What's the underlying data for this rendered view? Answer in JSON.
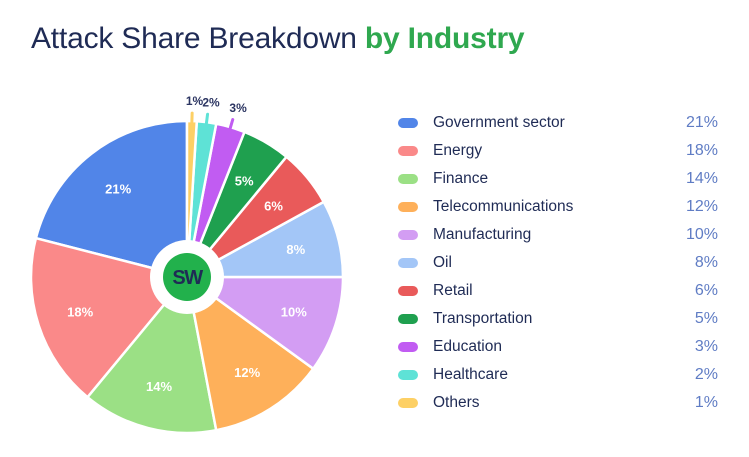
{
  "title": {
    "main": "Attack Share Breakdown",
    "accent": "by Industry"
  },
  "logo_text": "SW",
  "colors": {
    "title": "#1f2b55",
    "accent": "#2fa84f",
    "value_text": "#5f7cc4"
  },
  "chart_data": {
    "type": "pie",
    "title": "Attack Share Breakdown by Industry",
    "unit": "%",
    "categories": [
      "Government sector",
      "Energy",
      "Finance",
      "Telecommunications",
      "Manufacturing",
      "Oil",
      "Retail",
      "Transportation",
      "Education",
      "Healthcare",
      "Others"
    ],
    "values": [
      21,
      18,
      14,
      12,
      10,
      8,
      6,
      5,
      3,
      2,
      1
    ],
    "labels": [
      "21%",
      "18%",
      "14%",
      "12%",
      "10%",
      "8%",
      "6%",
      "5%",
      "3%",
      "2%",
      "1%"
    ],
    "colors": [
      "#5185e8",
      "#fa8989",
      "#9be085",
      "#feb05a",
      "#d39df3",
      "#a3c6f7",
      "#e95a5a",
      "#1fa04f",
      "#c15cf2",
      "#5ee2d6",
      "#fdd065"
    ],
    "label_colors": [
      "#ffffff",
      "#ffffff",
      "#ffffff",
      "#ffffff",
      "#ffffff",
      "#ffffff",
      "#ffffff",
      "#ffffff",
      "#2c3562",
      "#2c3562",
      "#2c3562"
    ],
    "legend": "right",
    "grid": false
  }
}
